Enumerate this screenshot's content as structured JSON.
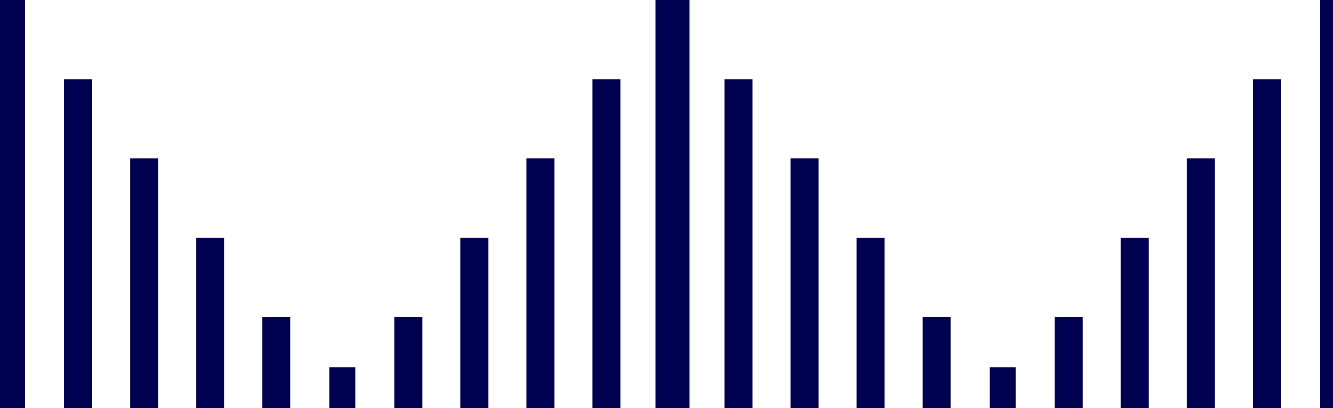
{
  "chart_data": {
    "type": "bar",
    "title": "",
    "xlabel": "",
    "ylabel": "",
    "grid": false,
    "legend": "none",
    "bar_color": "#000050",
    "background_color": "#ffffff",
    "ylim": [
      0,
      1
    ],
    "values": [
      1.0,
      0.806,
      0.612,
      0.417,
      0.223,
      0.1,
      0.223,
      0.417,
      0.612,
      0.806,
      1.0,
      0.806,
      0.612,
      0.417,
      0.223,
      0.1,
      0.223,
      0.417,
      0.612,
      0.806,
      1.0
    ]
  }
}
